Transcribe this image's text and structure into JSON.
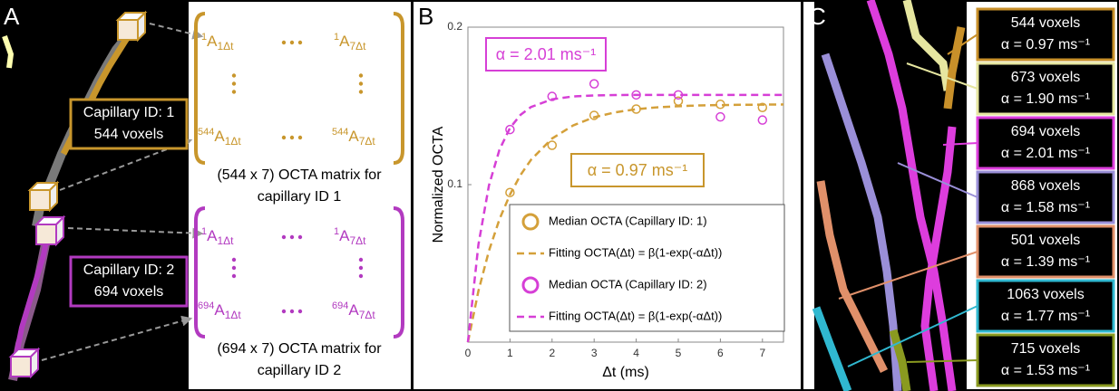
{
  "panel_a": {
    "label": "A",
    "capillaries": [
      {
        "id_label": "Capillary ID: 1",
        "voxels": "544 voxels",
        "color": "#c8962c",
        "matrix": {
          "top_left": {
            "sup": "1",
            "base": "A",
            "sub": "1Δt"
          },
          "top_right": {
            "sup": "1",
            "base": "A",
            "sub": "7Δt"
          },
          "bottom_left": {
            "sup": "544",
            "base": "A",
            "sub": "1Δt"
          },
          "bottom_right": {
            "sup": "544",
            "base": "A",
            "sub": "7Δt"
          }
        },
        "caption": [
          "(544 x 7) OCTA matrix for",
          "capillary ID 1"
        ]
      },
      {
        "id_label": "Capillary ID: 2",
        "voxels": "694 voxels",
        "color": "#b23ac0",
        "matrix": {
          "top_left": {
            "sup": "1",
            "base": "A",
            "sub": "1Δt"
          },
          "top_right": {
            "sup": "1",
            "base": "A",
            "sub": "7Δt"
          },
          "bottom_left": {
            "sup": "694",
            "base": "A",
            "sub": "1Δt"
          },
          "bottom_right": {
            "sup": "694",
            "base": "A",
            "sub": "7Δt"
          }
        },
        "caption": [
          "(694 x 7) OCTA matrix for",
          "capillary ID 2"
        ]
      }
    ]
  },
  "chart_data": {
    "type": "scatter",
    "panel_label": "B",
    "x_label": "Δt (ms)",
    "y_label": "Normalized OCTA",
    "xlim": [
      0,
      7.5
    ],
    "xticks": [
      0,
      1,
      2,
      3,
      4,
      5,
      6,
      7
    ],
    "ylim": [
      0,
      0.2
    ],
    "yticks": [
      0.1,
      0.2
    ],
    "annotations": [
      {
        "text": "α = 2.01 ms⁻¹",
        "color": "#d63fd6"
      },
      {
        "text": "α = 0.97 ms⁻¹",
        "color": "#c8962c"
      }
    ],
    "series": [
      {
        "name": "Median OCTA (Capillary ID: 1)",
        "color": "#d4a03a",
        "mode": "markers",
        "x": [
          1,
          2,
          3,
          4,
          5,
          6,
          7
        ],
        "values": [
          0.095,
          0.125,
          0.144,
          0.148,
          0.153,
          0.151,
          0.149
        ]
      },
      {
        "name": "Fitting OCTA(Δt) = β(1-exp(-αΔt))",
        "color": "#d4a03a",
        "mode": "dashed",
        "x": [
          0,
          0.25,
          0.5,
          0.75,
          1,
          1.25,
          1.5,
          2,
          2.5,
          3,
          3.5,
          4,
          4.5,
          5,
          5.5,
          6,
          6.5,
          7,
          7.5
        ],
        "values": [
          0,
          0.0325,
          0.058,
          0.078,
          0.0937,
          0.1061,
          0.1158,
          0.1293,
          0.1376,
          0.1428,
          0.1459,
          0.1479,
          0.1491,
          0.1498,
          0.1503,
          0.1505,
          0.1507,
          0.1508,
          0.1509
        ]
      },
      {
        "name": "Median OCTA (Capillary ID: 2)",
        "color": "#d63fd6",
        "mode": "markers",
        "x": [
          1,
          2,
          3,
          4,
          5,
          6,
          7
        ],
        "values": [
          0.135,
          0.156,
          0.164,
          0.157,
          0.157,
          0.143,
          0.141
        ]
      },
      {
        "name": "Fitting OCTA(Δt) = β(1-exp(-αΔt))",
        "color": "#d63fd6",
        "mode": "dashed",
        "x": [
          0,
          0.25,
          0.5,
          0.75,
          1,
          1.25,
          1.5,
          2,
          2.5,
          3,
          3.5,
          4,
          4.5,
          5,
          5.5,
          6,
          6.5,
          7,
          7.5
        ],
        "values": [
          0,
          0.062,
          0.0995,
          0.1222,
          0.136,
          0.1443,
          0.1493,
          0.1542,
          0.156,
          0.1566,
          0.1569,
          0.157,
          0.157,
          0.157,
          0.157,
          0.157,
          0.157,
          0.157,
          0.157
        ]
      }
    ]
  },
  "panel_c": {
    "label": "C",
    "entries": [
      {
        "voxels": "544 voxels",
        "alpha": "α = 0.97 ms⁻¹",
        "color": "#c8902a"
      },
      {
        "voxels": "673 voxels",
        "alpha": "α = 1.90 ms⁻¹",
        "color": "#e6e6a0"
      },
      {
        "voxels": "694 voxels",
        "alpha": "α = 2.01 ms⁻¹",
        "color": "#dd3ddd"
      },
      {
        "voxels": "868 voxels",
        "alpha": "α = 1.58 ms⁻¹",
        "color": "#9a8fd8"
      },
      {
        "voxels": "501 voxels",
        "alpha": "α = 1.39 ms⁻¹",
        "color": "#e0906a"
      },
      {
        "voxels": "1063 voxels",
        "alpha": "α = 1.77 ms⁻¹",
        "color": "#30b8d0"
      },
      {
        "voxels": "715 voxels",
        "alpha": "α = 1.53 ms⁻¹",
        "color": "#8a9a20"
      }
    ]
  }
}
